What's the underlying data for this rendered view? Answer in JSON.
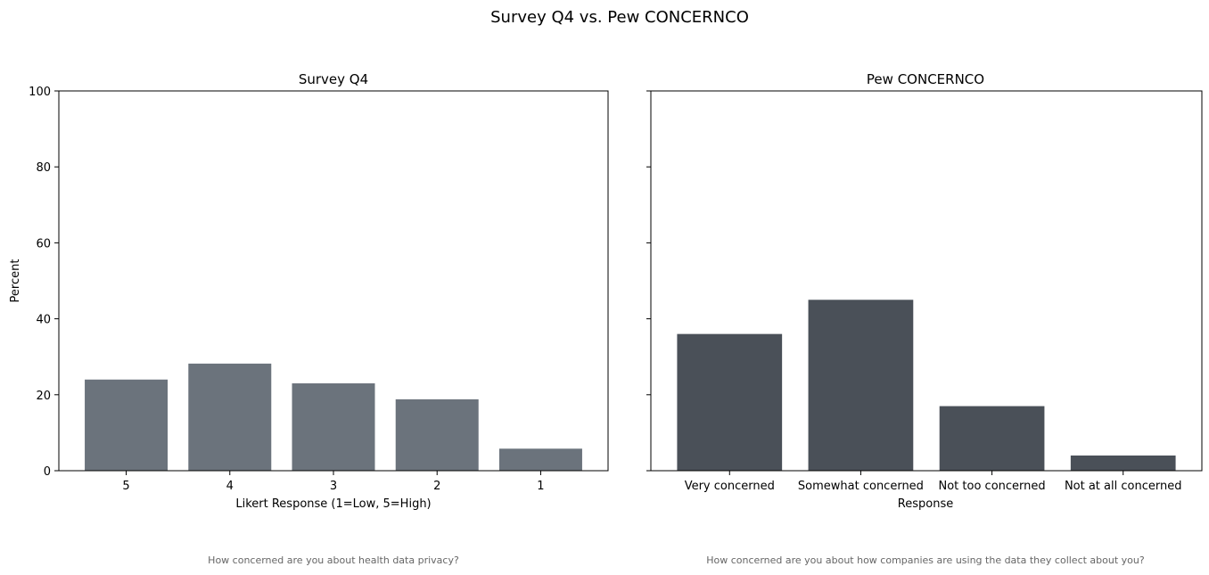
{
  "figure": {
    "title": "Survey Q4 vs. Pew CONCERNCO"
  },
  "chart_data": [
    {
      "type": "bar",
      "title": "Survey Q4",
      "xlabel": "Likert Response (1=Low, 5=High)",
      "ylabel": "Percent",
      "categories": [
        "5",
        "4",
        "3",
        "2",
        "1"
      ],
      "values": [
        24,
        28.2,
        23,
        18.8,
        5.8
      ],
      "ylim": [
        0,
        100
      ],
      "yticks": [
        0,
        20,
        40,
        60,
        80,
        100
      ],
      "bar_color": "#6b737c",
      "note": "How concerned are you about health data privacy?",
      "grid": false
    },
    {
      "type": "bar",
      "title": "Pew CONCERNCO",
      "xlabel": "Response",
      "ylabel": "",
      "categories": [
        "Very concerned",
        "Somewhat concerned",
        "Not too concerned",
        "Not at all concerned"
      ],
      "values": [
        36,
        45,
        17,
        4
      ],
      "ylim": [
        0,
        100
      ],
      "yticks": [
        0,
        20,
        40,
        60,
        80,
        100
      ],
      "show_ytick_labels": false,
      "bar_color": "#4a5058",
      "note": "How concerned are you about how companies are using the data they collect about you?",
      "grid": false
    }
  ]
}
